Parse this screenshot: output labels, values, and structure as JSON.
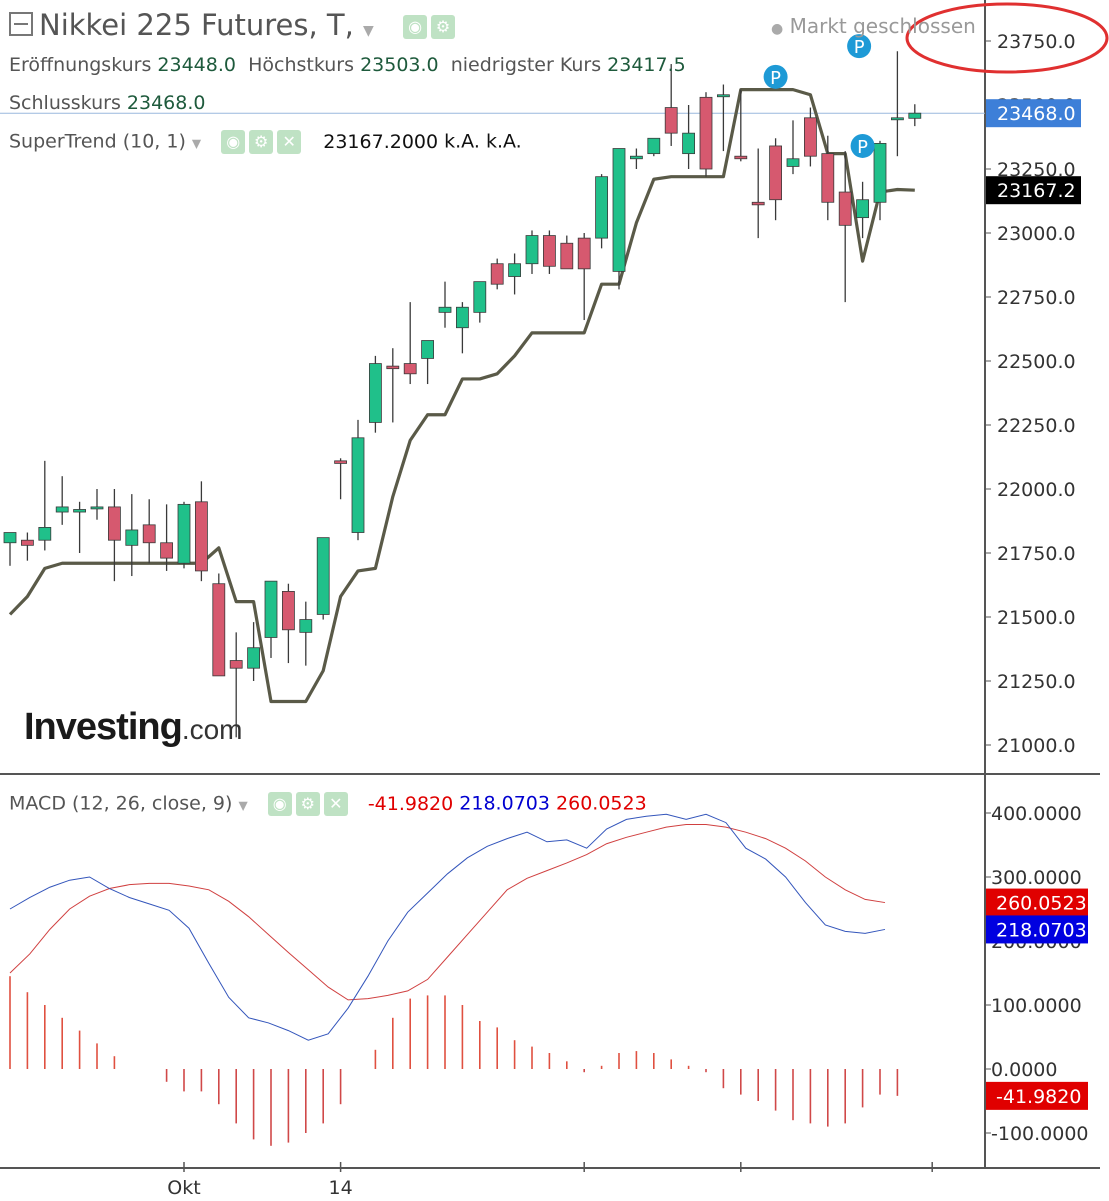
{
  "header": {
    "title": "Nikkei 225 Futures, T,",
    "market_status": "Markt geschlossen",
    "ohlc": {
      "open_label": "Eröffnungskurs",
      "open": "23448.0",
      "high_label": "Höchstkurs",
      "high": "23503.0",
      "low_label": "niedrigster Kurs",
      "low": "23417.5",
      "close_label": "Schlusskurs",
      "close": "23468.0"
    },
    "supertrend": {
      "label": "SuperTrend (10, 1)",
      "value": "23167.2000",
      "na1": "k.A.",
      "na2": "k.A."
    },
    "macd": {
      "label": "MACD (12, 26, close, 9)",
      "hist": "-41.9820",
      "macd": "218.0703",
      "signal": "260.0523"
    }
  },
  "logo": {
    "main": "Investing",
    "suffix": ".com"
  },
  "colors": {
    "up": "#20c08a",
    "down": "#d6596f",
    "supertrend": "#5a5a48",
    "macd": "#3355bb",
    "signal": "#d04040",
    "annotation": "#e03030",
    "pivot": "#1e9ad6"
  },
  "chart_data": [
    {
      "type": "candlestick",
      "ylim": [
        20870,
        23960
      ],
      "yticks": [
        "21000.0",
        "21250.0",
        "21500.0",
        "21750.0",
        "22000.0",
        "22250.0",
        "22500.0",
        "22750.0",
        "23000.0",
        "23250.0",
        "23500.0",
        "23750.0"
      ],
      "xticks": [
        {
          "index": 10,
          "label": "Okt"
        },
        {
          "index": 19,
          "label": "14"
        },
        {
          "index": 33,
          "label": ""
        },
        {
          "index": 42,
          "label": ""
        },
        {
          "index": 53,
          "label": ""
        }
      ],
      "price_labels": [
        {
          "value": 23468.0,
          "text": "23468.0",
          "bg": "#3d7fd8"
        },
        {
          "value": 23167.2,
          "text": "23167.2",
          "bg": "#000000"
        }
      ],
      "pivot_markers": [
        {
          "index": 44,
          "value": 23610,
          "text": "P"
        },
        {
          "index": 49,
          "value": 23340,
          "text": "P"
        },
        {
          "index": 48.8,
          "value": 23730,
          "text": "P"
        }
      ],
      "candles": [
        {
          "o": 21790,
          "h": 21800,
          "l": 21700,
          "c": 21830
        },
        {
          "o": 21800,
          "h": 21830,
          "l": 21720,
          "c": 21780
        },
        {
          "o": 21800,
          "h": 22110,
          "l": 21760,
          "c": 21850
        },
        {
          "o": 21910,
          "h": 22050,
          "l": 21860,
          "c": 21930
        },
        {
          "o": 21910,
          "h": 21950,
          "l": 21750,
          "c": 21920
        },
        {
          "o": 21930,
          "h": 22000,
          "l": 21880,
          "c": 21930
        },
        {
          "o": 21930,
          "h": 22000,
          "l": 21640,
          "c": 21800
        },
        {
          "o": 21780,
          "h": 21980,
          "l": 21660,
          "c": 21840
        },
        {
          "o": 21860,
          "h": 21960,
          "l": 21710,
          "c": 21790
        },
        {
          "o": 21790,
          "h": 21940,
          "l": 21680,
          "c": 21730
        },
        {
          "o": 21710,
          "h": 21950,
          "l": 21690,
          "c": 21940
        },
        {
          "o": 21950,
          "h": 22030,
          "l": 21640,
          "c": 21680
        },
        {
          "o": 21630,
          "h": 21670,
          "l": 21270,
          "c": 21270
        },
        {
          "o": 21330,
          "h": 21440,
          "l": 21030,
          "c": 21300
        },
        {
          "o": 21300,
          "h": 21480,
          "l": 21250,
          "c": 21380
        },
        {
          "o": 21420,
          "h": 21630,
          "l": 21340,
          "c": 21640
        },
        {
          "o": 21600,
          "h": 21630,
          "l": 21320,
          "c": 21450
        },
        {
          "o": 21440,
          "h": 21560,
          "l": 21310,
          "c": 21490
        },
        {
          "o": 21510,
          "h": 21800,
          "l": 21490,
          "c": 21810
        },
        {
          "o": 22110,
          "h": 22120,
          "l": 21960,
          "c": 22100
        },
        {
          "o": 21830,
          "h": 22270,
          "l": 21800,
          "c": 22200
        },
        {
          "o": 22260,
          "h": 22520,
          "l": 22220,
          "c": 22490
        },
        {
          "o": 22480,
          "h": 22550,
          "l": 22260,
          "c": 22470
        },
        {
          "o": 22490,
          "h": 22730,
          "l": 22410,
          "c": 22450
        },
        {
          "o": 22510,
          "h": 22560,
          "l": 22410,
          "c": 22580
        },
        {
          "o": 22690,
          "h": 22810,
          "l": 22630,
          "c": 22710
        },
        {
          "o": 22630,
          "h": 22730,
          "l": 22530,
          "c": 22710
        },
        {
          "o": 22690,
          "h": 22800,
          "l": 22650,
          "c": 22810
        },
        {
          "o": 22880,
          "h": 22900,
          "l": 22780,
          "c": 22800
        },
        {
          "o": 22830,
          "h": 22920,
          "l": 22760,
          "c": 22880
        },
        {
          "o": 22880,
          "h": 23010,
          "l": 22840,
          "c": 22990
        },
        {
          "o": 22990,
          "h": 23010,
          "l": 22840,
          "c": 22870
        },
        {
          "o": 22960,
          "h": 22990,
          "l": 22860,
          "c": 22860
        },
        {
          "o": 22980,
          "h": 23000,
          "l": 22660,
          "c": 22860
        },
        {
          "o": 22980,
          "h": 23230,
          "l": 22940,
          "c": 23220
        },
        {
          "o": 22850,
          "h": 23330,
          "l": 22780,
          "c": 23330
        },
        {
          "o": 23290,
          "h": 23330,
          "l": 23250,
          "c": 23300
        },
        {
          "o": 23310,
          "h": 23370,
          "l": 23300,
          "c": 23370
        },
        {
          "o": 23490,
          "h": 23660,
          "l": 23340,
          "c": 23390
        },
        {
          "o": 23310,
          "h": 23500,
          "l": 23250,
          "c": 23390
        },
        {
          "o": 23530,
          "h": 23550,
          "l": 23220,
          "c": 23250
        },
        {
          "o": 23540,
          "h": 23580,
          "l": 23320,
          "c": 23540
        },
        {
          "o": 23300,
          "h": 23560,
          "l": 23280,
          "c": 23290
        },
        {
          "o": 23120,
          "h": 23330,
          "l": 22980,
          "c": 23110
        },
        {
          "o": 23340,
          "h": 23370,
          "l": 23050,
          "c": 23130
        },
        {
          "o": 23260,
          "h": 23440,
          "l": 23230,
          "c": 23290
        },
        {
          "o": 23450,
          "h": 23490,
          "l": 23260,
          "c": 23300
        },
        {
          "o": 23310,
          "h": 23380,
          "l": 23050,
          "c": 23120
        },
        {
          "o": 23160,
          "h": 23320,
          "l": 22730,
          "c": 23030
        },
        {
          "o": 23060,
          "h": 23200,
          "l": 22980,
          "c": 23130
        },
        {
          "o": 23120,
          "h": 23360,
          "l": 23050,
          "c": 23350
        },
        {
          "o": 23450,
          "h": 23710,
          "l": 23300,
          "c": 23450
        },
        {
          "o": 23448,
          "h": 23503,
          "l": 23417.5,
          "c": 23468
        }
      ],
      "supertrend": [
        21510,
        21580,
        21690,
        21710,
        21710,
        21710,
        21710,
        21710,
        21710,
        21710,
        21710,
        21710,
        21770,
        21560,
        21560,
        21170,
        21170,
        21170,
        21290,
        21580,
        21680,
        21690,
        21970,
        22190,
        22290,
        22290,
        22430,
        22430,
        22450,
        22520,
        22610,
        22610,
        22610,
        22610,
        22800,
        22800,
        23040,
        23210,
        23220,
        23220,
        23220,
        23220,
        23560,
        23560,
        23560,
        23560,
        23540,
        23310,
        23310,
        22890,
        23160,
        23170,
        23167.2
      ]
    },
    {
      "type": "macd",
      "ylim": [
        -150,
        440
      ],
      "yticks": [
        "-100.0000",
        "0.0000",
        "100.0000",
        "200.0000",
        "300.0000",
        "400.0000"
      ],
      "value_labels": [
        {
          "value": 260.0523,
          "text": "260.0523",
          "bg": "#e00000"
        },
        {
          "value": 218.0703,
          "text": "218.0703",
          "bg": "#0000e0"
        },
        {
          "value": -41.982,
          "text": "-41.9820",
          "bg": "#e00000"
        }
      ],
      "macd": [
        250,
        268,
        284,
        295,
        300,
        282,
        268,
        258,
        248,
        220,
        165,
        112,
        80,
        72,
        60,
        45,
        55,
        95,
        145,
        200,
        245,
        275,
        305,
        330,
        348,
        360,
        370,
        355,
        358,
        345,
        375,
        390,
        395,
        398,
        390,
        398,
        385,
        345,
        328,
        300,
        260,
        225,
        215,
        212,
        218.0703
      ],
      "signal": [
        150,
        180,
        218,
        250,
        270,
        282,
        288,
        290,
        290,
        286,
        280,
        262,
        238,
        210,
        182,
        155,
        128,
        108,
        110,
        115,
        122,
        140,
        175,
        210,
        245,
        280,
        298,
        310,
        322,
        335,
        352,
        362,
        370,
        378,
        382,
        382,
        378,
        370,
        360,
        345,
        325,
        300,
        280,
        265,
        260.0523
      ],
      "histogram": [
        145,
        120,
        100,
        80,
        60,
        40,
        20,
        0,
        0,
        -20,
        -35,
        -35,
        -55,
        -85,
        -110,
        -120,
        -115,
        -100,
        -85,
        -55,
        0,
        30,
        80,
        110,
        115,
        115,
        100,
        75,
        65,
        45,
        35,
        25,
        12,
        -5,
        5,
        25,
        28,
        25,
        15,
        5,
        -5,
        -30,
        -40,
        -50,
        -65,
        -80,
        -85,
        -90,
        -85,
        -60,
        -40,
        -41.982
      ]
    }
  ]
}
